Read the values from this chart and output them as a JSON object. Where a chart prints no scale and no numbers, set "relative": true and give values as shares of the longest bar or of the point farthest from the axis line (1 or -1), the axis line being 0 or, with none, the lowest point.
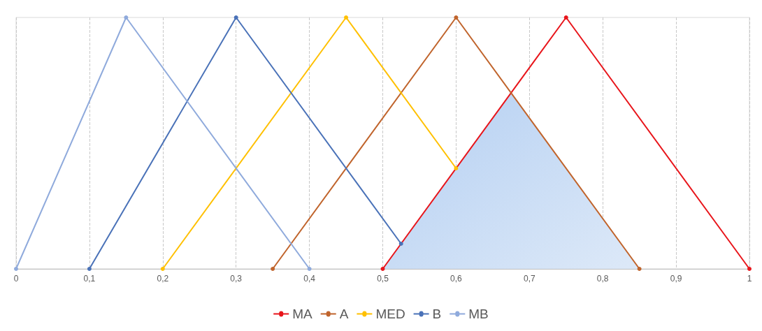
{
  "chart_data": {
    "type": "line",
    "relative": true,
    "xlim": [
      0,
      1
    ],
    "xticks": [
      0,
      {
        "value": 0.1,
        "label": "0,1"
      },
      {
        "value": 0.2,
        "label": "0,2"
      },
      {
        "value": 0.3,
        "label": "0,3"
      },
      {
        "value": 0.4,
        "label": "0,4"
      },
      {
        "value": 0.5,
        "label": "0,5"
      },
      {
        "value": 0.6,
        "label": "0,6"
      },
      {
        "value": 0.7,
        "label": "0,7"
      },
      {
        "value": 0.8,
        "label": "0,8"
      },
      {
        "value": 0.9,
        "label": "0,9"
      },
      1
    ],
    "grid": "x",
    "legend": "bottom",
    "marker": "circle",
    "line_style": "solid",
    "series": [
      {
        "type": "area",
        "marker": "none",
        "color": "#b4cff2",
        "x": [
          0.5,
          0.675,
          0.85
        ],
        "values": [
          0,
          0.7,
          0
        ]
      },
      {
        "name": "MA",
        "color": "#e8151b",
        "x": [
          0.5,
          0.75,
          1
        ],
        "values": [
          0,
          1,
          0
        ]
      },
      {
        "name": "A",
        "color": "#c0642c",
        "x": [
          0.35,
          0.6,
          0.85
        ],
        "values": [
          0,
          1,
          0
        ]
      },
      {
        "name": "MED",
        "color": "#ffc000",
        "x": [
          0.2,
          0.45,
          0.6
        ],
        "values": [
          0,
          1,
          0.4
        ]
      },
      {
        "name": "B",
        "color": "#4a72b8",
        "x": [
          0.1,
          0.3,
          0.525
        ],
        "values": [
          0,
          1,
          0.1
        ]
      },
      {
        "name": "MB",
        "color": "#8faadc",
        "x": [
          0,
          0.15,
          0.4
        ],
        "values": [
          0,
          1,
          0
        ]
      }
    ]
  }
}
